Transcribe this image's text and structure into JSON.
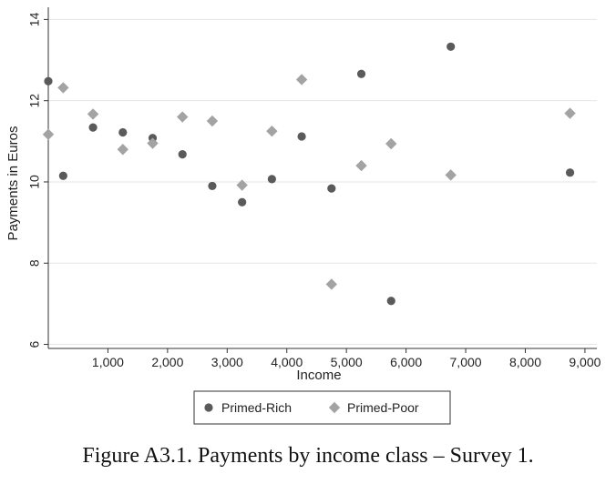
{
  "chart_data": {
    "type": "scatter",
    "title": "",
    "xlabel": "Income",
    "ylabel": "Payments in Euros",
    "xlim": [
      0,
      9200
    ],
    "ylim": [
      5.9,
      14.3
    ],
    "xticks": [
      1000,
      2000,
      3000,
      4000,
      5000,
      6000,
      7000,
      8000,
      9000
    ],
    "xtick_labels": [
      "1,000",
      "2,000",
      "3,000",
      "4,000",
      "5,000",
      "6,000",
      "7,000",
      "8,000",
      "9,000"
    ],
    "yticks": [
      6,
      8,
      10,
      12,
      14
    ],
    "ytick_labels": [
      "6",
      "8",
      "10",
      "12",
      "14"
    ],
    "grid": "horizontal",
    "legend_position": "bottom-center",
    "series": [
      {
        "name": "Primed-Rich",
        "marker": "circle",
        "color": "#5a5a5a",
        "points": [
          {
            "x": 0,
            "y": 12.48
          },
          {
            "x": 250,
            "y": 10.15
          },
          {
            "x": 750,
            "y": 11.34
          },
          {
            "x": 1250,
            "y": 11.22
          },
          {
            "x": 1750,
            "y": 11.08
          },
          {
            "x": 2250,
            "y": 10.68
          },
          {
            "x": 2750,
            "y": 9.9
          },
          {
            "x": 3250,
            "y": 9.5
          },
          {
            "x": 3750,
            "y": 10.07
          },
          {
            "x": 4250,
            "y": 11.12
          },
          {
            "x": 4750,
            "y": 9.84
          },
          {
            "x": 5250,
            "y": 12.66
          },
          {
            "x": 5750,
            "y": 7.07
          },
          {
            "x": 6750,
            "y": 13.33
          },
          {
            "x": 8750,
            "y": 10.23
          }
        ]
      },
      {
        "name": "Primed-Poor",
        "marker": "diamond",
        "color": "#a3a3a3",
        "points": [
          {
            "x": 0,
            "y": 11.17
          },
          {
            "x": 250,
            "y": 12.32
          },
          {
            "x": 750,
            "y": 11.67
          },
          {
            "x": 1250,
            "y": 10.8
          },
          {
            "x": 1750,
            "y": 10.95
          },
          {
            "x": 2250,
            "y": 11.6
          },
          {
            "x": 2750,
            "y": 11.5
          },
          {
            "x": 3250,
            "y": 9.92
          },
          {
            "x": 3750,
            "y": 11.25
          },
          {
            "x": 4250,
            "y": 12.52
          },
          {
            "x": 4750,
            "y": 7.48
          },
          {
            "x": 5250,
            "y": 10.4
          },
          {
            "x": 5750,
            "y": 10.94
          },
          {
            "x": 6750,
            "y": 10.17
          },
          {
            "x": 8750,
            "y": 11.69
          }
        ]
      }
    ]
  },
  "caption": "Figure A3.1. Payments by income class – Survey 1."
}
